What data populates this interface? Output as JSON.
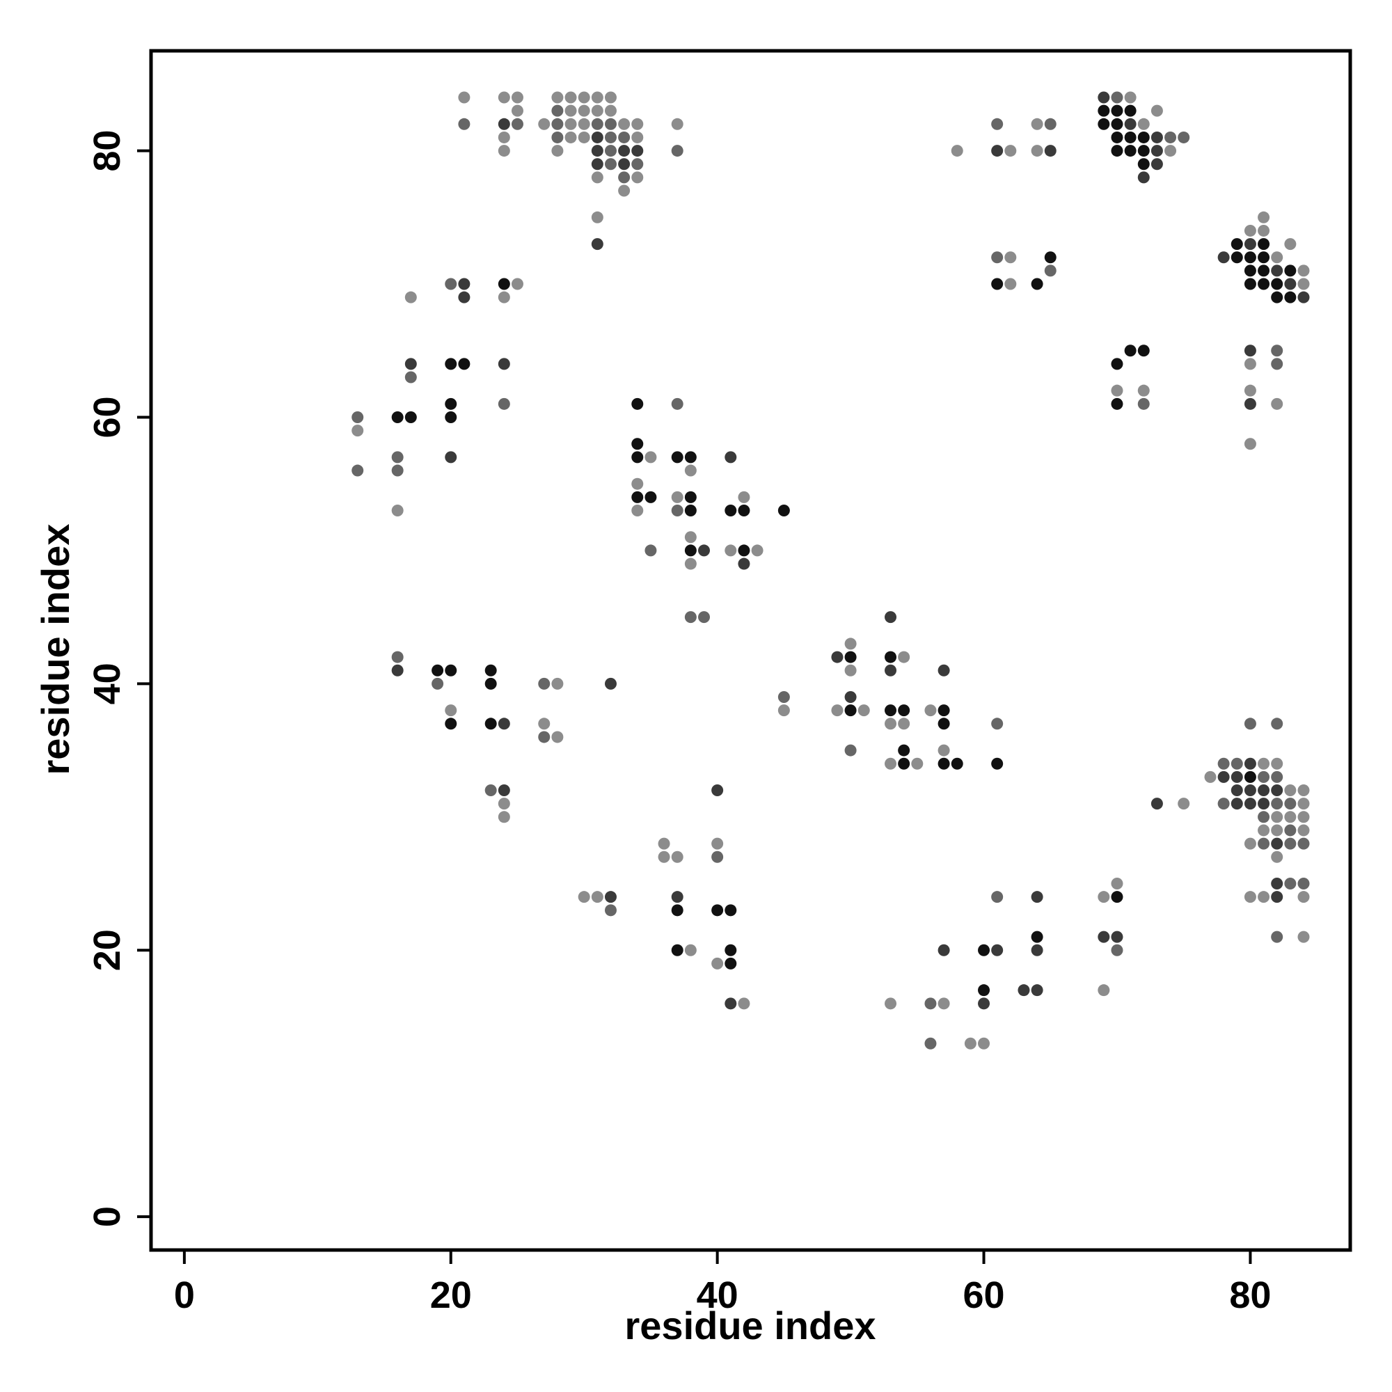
{
  "chart_data": {
    "type": "scatter",
    "title": "",
    "xlabel": "residue index",
    "ylabel": "residue index",
    "xlim": [
      -2.5,
      87.5
    ],
    "ylim": [
      -2.5,
      87.5
    ],
    "xticks": [
      0,
      20,
      40,
      60,
      80
    ],
    "yticks": [
      0,
      20,
      40,
      60,
      80
    ],
    "grid": false,
    "legend": "none",
    "colors": {
      "black": "#111111",
      "dark": "#3a3a3a",
      "mid": "#666666",
      "light": "#8c8c8c"
    },
    "points_format": "[x, y, shade]",
    "points": [
      [
        21,
        84,
        "light"
      ],
      [
        24,
        84,
        "light"
      ],
      [
        25,
        84,
        "light"
      ],
      [
        28,
        84,
        "light"
      ],
      [
        29,
        84,
        "light"
      ],
      [
        30,
        84,
        "light"
      ],
      [
        31,
        84,
        "light"
      ],
      [
        32,
        84,
        "light"
      ],
      [
        25,
        83,
        "light"
      ],
      [
        28,
        83,
        "mid"
      ],
      [
        29,
        83,
        "light"
      ],
      [
        30,
        83,
        "light"
      ],
      [
        31,
        83,
        "light"
      ],
      [
        32,
        83,
        "light"
      ],
      [
        21,
        82,
        "mid"
      ],
      [
        24,
        82,
        "dark"
      ],
      [
        25,
        82,
        "mid"
      ],
      [
        27,
        82,
        "light"
      ],
      [
        28,
        82,
        "mid"
      ],
      [
        29,
        82,
        "light"
      ],
      [
        30,
        82,
        "light"
      ],
      [
        31,
        82,
        "mid"
      ],
      [
        32,
        82,
        "mid"
      ],
      [
        33,
        82,
        "light"
      ],
      [
        34,
        82,
        "light"
      ],
      [
        37,
        82,
        "light"
      ],
      [
        24,
        81,
        "light"
      ],
      [
        28,
        81,
        "mid"
      ],
      [
        29,
        81,
        "light"
      ],
      [
        30,
        81,
        "light"
      ],
      [
        31,
        81,
        "dark"
      ],
      [
        32,
        81,
        "mid"
      ],
      [
        33,
        81,
        "mid"
      ],
      [
        34,
        81,
        "light"
      ],
      [
        24,
        80,
        "light"
      ],
      [
        28,
        80,
        "light"
      ],
      [
        31,
        80,
        "dark"
      ],
      [
        32,
        80,
        "mid"
      ],
      [
        33,
        80,
        "dark"
      ],
      [
        34,
        80,
        "dark"
      ],
      [
        37,
        80,
        "mid"
      ],
      [
        31,
        79,
        "dark"
      ],
      [
        32,
        79,
        "mid"
      ],
      [
        33,
        79,
        "dark"
      ],
      [
        34,
        79,
        "mid"
      ],
      [
        31,
        78,
        "light"
      ],
      [
        33,
        78,
        "mid"
      ],
      [
        34,
        78,
        "light"
      ],
      [
        33,
        77,
        "light"
      ],
      [
        31,
        75,
        "light"
      ],
      [
        31,
        73,
        "dark"
      ],
      [
        69,
        84,
        "dark"
      ],
      [
        70,
        84,
        "mid"
      ],
      [
        71,
        84,
        "light"
      ],
      [
        69,
        83,
        "black"
      ],
      [
        70,
        83,
        "black"
      ],
      [
        71,
        83,
        "black"
      ],
      [
        73,
        83,
        "light"
      ],
      [
        61,
        82,
        "mid"
      ],
      [
        64,
        82,
        "light"
      ],
      [
        65,
        82,
        "mid"
      ],
      [
        69,
        82,
        "black"
      ],
      [
        70,
        82,
        "black"
      ],
      [
        71,
        82,
        "dark"
      ],
      [
        72,
        82,
        "light"
      ],
      [
        70,
        81,
        "black"
      ],
      [
        71,
        81,
        "black"
      ],
      [
        72,
        81,
        "black"
      ],
      [
        73,
        81,
        "dark"
      ],
      [
        74,
        81,
        "mid"
      ],
      [
        75,
        81,
        "mid"
      ],
      [
        58,
        80,
        "light"
      ],
      [
        61,
        80,
        "dark"
      ],
      [
        62,
        80,
        "light"
      ],
      [
        64,
        80,
        "light"
      ],
      [
        65,
        80,
        "dark"
      ],
      [
        70,
        80,
        "black"
      ],
      [
        71,
        80,
        "black"
      ],
      [
        72,
        80,
        "black"
      ],
      [
        73,
        80,
        "dark"
      ],
      [
        74,
        80,
        "light"
      ],
      [
        72,
        79,
        "black"
      ],
      [
        73,
        79,
        "dark"
      ],
      [
        72,
        78,
        "dark"
      ],
      [
        81,
        75,
        "light"
      ],
      [
        80,
        74,
        "light"
      ],
      [
        81,
        74,
        "light"
      ],
      [
        79,
        73,
        "black"
      ],
      [
        80,
        73,
        "dark"
      ],
      [
        81,
        73,
        "black"
      ],
      [
        83,
        73,
        "light"
      ],
      [
        78,
        72,
        "dark"
      ],
      [
        79,
        72,
        "black"
      ],
      [
        80,
        72,
        "black"
      ],
      [
        81,
        72,
        "black"
      ],
      [
        82,
        72,
        "light"
      ],
      [
        80,
        71,
        "black"
      ],
      [
        81,
        71,
        "black"
      ],
      [
        82,
        71,
        "dark"
      ],
      [
        83,
        71,
        "black"
      ],
      [
        84,
        71,
        "light"
      ],
      [
        80,
        70,
        "black"
      ],
      [
        81,
        70,
        "black"
      ],
      [
        82,
        70,
        "black"
      ],
      [
        83,
        70,
        "dark"
      ],
      [
        84,
        70,
        "light"
      ],
      [
        82,
        69,
        "black"
      ],
      [
        83,
        69,
        "black"
      ],
      [
        84,
        69,
        "dark"
      ],
      [
        61,
        72,
        "mid"
      ],
      [
        62,
        72,
        "light"
      ],
      [
        65,
        72,
        "black"
      ],
      [
        61,
        70,
        "black"
      ],
      [
        62,
        70,
        "light"
      ],
      [
        64,
        70,
        "black"
      ],
      [
        65,
        71,
        "mid"
      ],
      [
        71,
        65,
        "black"
      ],
      [
        72,
        65,
        "black"
      ],
      [
        70,
        64,
        "black"
      ],
      [
        70,
        62,
        "light"
      ],
      [
        72,
        62,
        "light"
      ],
      [
        70,
        61,
        "black"
      ],
      [
        72,
        61,
        "mid"
      ],
      [
        80,
        65,
        "dark"
      ],
      [
        82,
        65,
        "mid"
      ],
      [
        80,
        64,
        "light"
      ],
      [
        82,
        64,
        "mid"
      ],
      [
        80,
        62,
        "light"
      ],
      [
        80,
        61,
        "dark"
      ],
      [
        82,
        61,
        "light"
      ],
      [
        80,
        58,
        "light"
      ],
      [
        17,
        69,
        "light"
      ],
      [
        20,
        70,
        "mid"
      ],
      [
        21,
        70,
        "dark"
      ],
      [
        21,
        69,
        "dark"
      ],
      [
        24,
        70,
        "black"
      ],
      [
        25,
        70,
        "light"
      ],
      [
        24,
        69,
        "light"
      ],
      [
        17,
        64,
        "dark"
      ],
      [
        17,
        63,
        "mid"
      ],
      [
        20,
        64,
        "black"
      ],
      [
        21,
        64,
        "black"
      ],
      [
        24,
        64,
        "dark"
      ],
      [
        24,
        61,
        "mid"
      ],
      [
        13,
        60,
        "mid"
      ],
      [
        13,
        59,
        "light"
      ],
      [
        13,
        56,
        "mid"
      ],
      [
        16,
        60,
        "black"
      ],
      [
        17,
        60,
        "black"
      ],
      [
        16,
        57,
        "mid"
      ],
      [
        16,
        56,
        "mid"
      ],
      [
        16,
        53,
        "light"
      ],
      [
        20,
        61,
        "black"
      ],
      [
        20,
        60,
        "black"
      ],
      [
        20,
        57,
        "dark"
      ],
      [
        34,
        61,
        "black"
      ],
      [
        37,
        61,
        "mid"
      ],
      [
        34,
        58,
        "black"
      ],
      [
        34,
        57,
        "black"
      ],
      [
        35,
        57,
        "light"
      ],
      [
        34,
        55,
        "light"
      ],
      [
        34,
        54,
        "black"
      ],
      [
        35,
        54,
        "black"
      ],
      [
        34,
        53,
        "light"
      ],
      [
        37,
        57,
        "black"
      ],
      [
        38,
        57,
        "black"
      ],
      [
        38,
        56,
        "light"
      ],
      [
        37,
        54,
        "light"
      ],
      [
        38,
        54,
        "black"
      ],
      [
        37,
        53,
        "mid"
      ],
      [
        38,
        53,
        "black"
      ],
      [
        41,
        57,
        "dark"
      ],
      [
        41,
        53,
        "black"
      ],
      [
        42,
        53,
        "black"
      ],
      [
        42,
        54,
        "light"
      ],
      [
        45,
        53,
        "black"
      ],
      [
        35,
        50,
        "mid"
      ],
      [
        38,
        51,
        "light"
      ],
      [
        38,
        50,
        "black"
      ],
      [
        39,
        50,
        "dark"
      ],
      [
        38,
        49,
        "light"
      ],
      [
        41,
        50,
        "light"
      ],
      [
        42,
        50,
        "black"
      ],
      [
        43,
        50,
        "light"
      ],
      [
        42,
        49,
        "dark"
      ],
      [
        38,
        45,
        "mid"
      ],
      [
        39,
        45,
        "mid"
      ],
      [
        16,
        42,
        "mid"
      ],
      [
        16,
        41,
        "dark"
      ],
      [
        19,
        41,
        "black"
      ],
      [
        20,
        41,
        "black"
      ],
      [
        19,
        40,
        "mid"
      ],
      [
        20,
        38,
        "light"
      ],
      [
        20,
        37,
        "black"
      ],
      [
        23,
        41,
        "black"
      ],
      [
        23,
        40,
        "black"
      ],
      [
        23,
        37,
        "black"
      ],
      [
        24,
        37,
        "dark"
      ],
      [
        27,
        40,
        "mid"
      ],
      [
        28,
        40,
        "light"
      ],
      [
        27,
        37,
        "light"
      ],
      [
        27,
        36,
        "mid"
      ],
      [
        28,
        36,
        "light"
      ],
      [
        32,
        40,
        "dark"
      ],
      [
        23,
        32,
        "mid"
      ],
      [
        24,
        32,
        "dark"
      ],
      [
        24,
        31,
        "light"
      ],
      [
        24,
        30,
        "light"
      ],
      [
        53,
        45,
        "dark"
      ],
      [
        50,
        43,
        "light"
      ],
      [
        49,
        42,
        "dark"
      ],
      [
        50,
        42,
        "black"
      ],
      [
        50,
        41,
        "light"
      ],
      [
        53,
        42,
        "black"
      ],
      [
        54,
        42,
        "light"
      ],
      [
        53,
        41,
        "dark"
      ],
      [
        45,
        39,
        "mid"
      ],
      [
        45,
        38,
        "light"
      ],
      [
        49,
        38,
        "light"
      ],
      [
        50,
        39,
        "dark"
      ],
      [
        50,
        38,
        "black"
      ],
      [
        51,
        38,
        "light"
      ],
      [
        50,
        35,
        "mid"
      ],
      [
        53,
        38,
        "black"
      ],
      [
        54,
        38,
        "black"
      ],
      [
        53,
        37,
        "light"
      ],
      [
        54,
        37,
        "light"
      ],
      [
        54,
        35,
        "black"
      ],
      [
        53,
        34,
        "light"
      ],
      [
        54,
        34,
        "black"
      ],
      [
        55,
        34,
        "light"
      ],
      [
        57,
        41,
        "dark"
      ],
      [
        56,
        38,
        "light"
      ],
      [
        57,
        38,
        "black"
      ],
      [
        57,
        37,
        "black"
      ],
      [
        57,
        35,
        "light"
      ],
      [
        57,
        34,
        "black"
      ],
      [
        58,
        34,
        "black"
      ],
      [
        61,
        37,
        "mid"
      ],
      [
        61,
        34,
        "black"
      ],
      [
        80,
        37,
        "mid"
      ],
      [
        82,
        37,
        "mid"
      ],
      [
        77,
        33,
        "light"
      ],
      [
        78,
        34,
        "mid"
      ],
      [
        79,
        34,
        "mid"
      ],
      [
        80,
        34,
        "dark"
      ],
      [
        81,
        34,
        "light"
      ],
      [
        82,
        34,
        "light"
      ],
      [
        78,
        33,
        "dark"
      ],
      [
        79,
        33,
        "dark"
      ],
      [
        80,
        33,
        "black"
      ],
      [
        81,
        33,
        "mid"
      ],
      [
        82,
        33,
        "mid"
      ],
      [
        79,
        32,
        "dark"
      ],
      [
        80,
        32,
        "dark"
      ],
      [
        81,
        32,
        "dark"
      ],
      [
        82,
        32,
        "dark"
      ],
      [
        83,
        32,
        "light"
      ],
      [
        84,
        32,
        "light"
      ],
      [
        73,
        31,
        "dark"
      ],
      [
        75,
        31,
        "light"
      ],
      [
        78,
        31,
        "mid"
      ],
      [
        79,
        31,
        "dark"
      ],
      [
        80,
        31,
        "dark"
      ],
      [
        81,
        31,
        "dark"
      ],
      [
        82,
        31,
        "mid"
      ],
      [
        83,
        31,
        "mid"
      ],
      [
        84,
        31,
        "light"
      ],
      [
        81,
        30,
        "mid"
      ],
      [
        82,
        30,
        "light"
      ],
      [
        83,
        30,
        "light"
      ],
      [
        84,
        30,
        "light"
      ],
      [
        81,
        29,
        "light"
      ],
      [
        82,
        29,
        "light"
      ],
      [
        83,
        29,
        "mid"
      ],
      [
        84,
        29,
        "light"
      ],
      [
        80,
        28,
        "light"
      ],
      [
        81,
        28,
        "mid"
      ],
      [
        82,
        28,
        "dark"
      ],
      [
        83,
        28,
        "mid"
      ],
      [
        84,
        28,
        "mid"
      ],
      [
        82,
        27,
        "light"
      ],
      [
        82,
        25,
        "dark"
      ],
      [
        83,
        25,
        "mid"
      ],
      [
        84,
        25,
        "mid"
      ],
      [
        80,
        24,
        "light"
      ],
      [
        81,
        24,
        "light"
      ],
      [
        82,
        24,
        "dark"
      ],
      [
        84,
        24,
        "light"
      ],
      [
        82,
        21,
        "mid"
      ],
      [
        84,
        21,
        "light"
      ],
      [
        30,
        24,
        "light"
      ],
      [
        31,
        24,
        "light"
      ],
      [
        32,
        24,
        "dark"
      ],
      [
        32,
        23,
        "mid"
      ],
      [
        36,
        28,
        "light"
      ],
      [
        36,
        27,
        "light"
      ],
      [
        37,
        27,
        "light"
      ],
      [
        37,
        24,
        "dark"
      ],
      [
        37,
        23,
        "black"
      ],
      [
        37,
        20,
        "black"
      ],
      [
        38,
        20,
        "light"
      ],
      [
        40,
        32,
        "dark"
      ],
      [
        40,
        28,
        "light"
      ],
      [
        40,
        27,
        "mid"
      ],
      [
        40,
        23,
        "black"
      ],
      [
        41,
        23,
        "black"
      ],
      [
        41,
        20,
        "black"
      ],
      [
        40,
        19,
        "light"
      ],
      [
        41,
        19,
        "black"
      ],
      [
        41,
        16,
        "dark"
      ],
      [
        42,
        16,
        "light"
      ],
      [
        53,
        16,
        "light"
      ],
      [
        56,
        16,
        "mid"
      ],
      [
        57,
        16,
        "light"
      ],
      [
        56,
        13,
        "mid"
      ],
      [
        59,
        13,
        "light"
      ],
      [
        60,
        13,
        "light"
      ],
      [
        57,
        20,
        "dark"
      ],
      [
        60,
        20,
        "black"
      ],
      [
        61,
        20,
        "dark"
      ],
      [
        60,
        17,
        "black"
      ],
      [
        60,
        16,
        "dark"
      ],
      [
        63,
        17,
        "dark"
      ],
      [
        64,
        17,
        "dark"
      ],
      [
        61,
        24,
        "mid"
      ],
      [
        64,
        24,
        "dark"
      ],
      [
        64,
        21,
        "black"
      ],
      [
        64,
        20,
        "dark"
      ],
      [
        69,
        24,
        "light"
      ],
      [
        70,
        24,
        "black"
      ],
      [
        70,
        25,
        "light"
      ],
      [
        69,
        21,
        "dark"
      ],
      [
        70,
        21,
        "dark"
      ],
      [
        70,
        20,
        "mid"
      ],
      [
        69,
        17,
        "light"
      ]
    ]
  }
}
